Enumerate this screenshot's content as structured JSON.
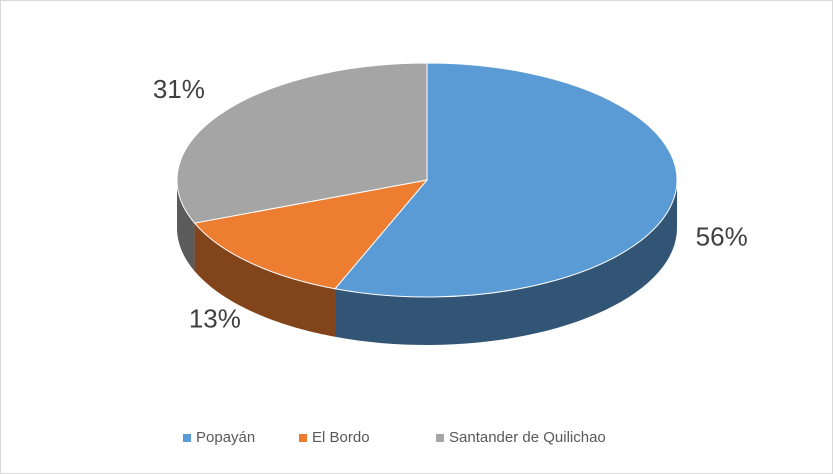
{
  "chart_data": {
    "type": "pie",
    "three_d": true,
    "categories": [
      "Popayán",
      "El Bordo",
      "Santander de Quilichao"
    ],
    "values": [
      56,
      13,
      31
    ],
    "value_labels": [
      "56%",
      "13%",
      "31%"
    ],
    "colors": [
      "#5b9bd5",
      "#ed7d31",
      "#a5a5a5"
    ],
    "legend": "bottom"
  }
}
